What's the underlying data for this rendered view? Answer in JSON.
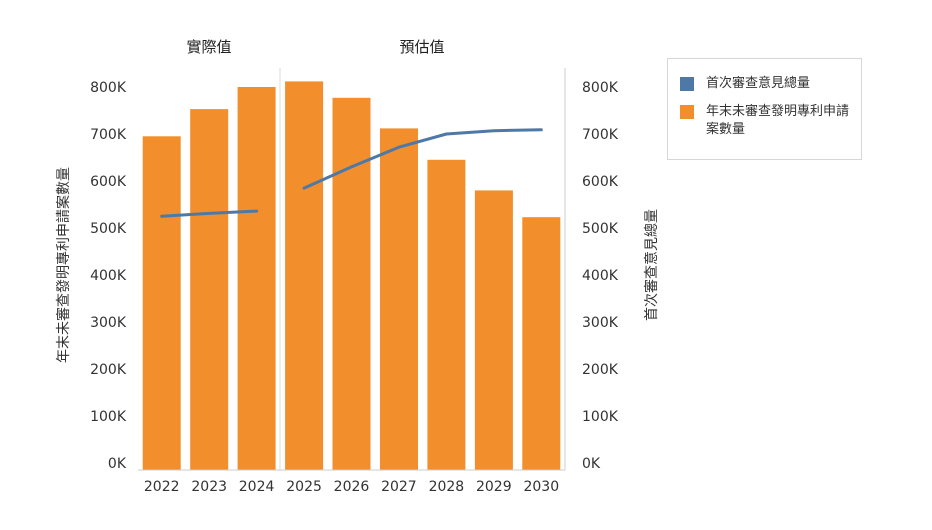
{
  "chart_data": {
    "type": "bar",
    "categories": [
      "2022",
      "2023",
      "2024",
      "2025",
      "2026",
      "2027",
      "2028",
      "2029",
      "2030"
    ],
    "section_labels": [
      "實際值",
      "預估值"
    ],
    "series": [
      {
        "name": "年末未審查發明專利申請案數量",
        "kind": "bar",
        "axis": "left",
        "color": "#f28e2b",
        "values": [
          695000,
          753000,
          800000,
          812000,
          777000,
          712000,
          645000,
          580000,
          523000
        ]
      },
      {
        "name": "首次審查意見總量",
        "kind": "line",
        "axis": "right",
        "color": "#4e79a7",
        "values": [
          525000,
          531000,
          536000,
          585000,
          630000,
          672000,
          700000,
          707000,
          709000
        ]
      }
    ],
    "left_axis_label": "年末未審查發明專利申請案數量",
    "right_axis_label": "首次審查意見總量",
    "ylim": [
      0,
      800000
    ],
    "yticks": [
      "0K",
      "100K",
      "200K",
      "300K",
      "400K",
      "500K",
      "600K",
      "700K",
      "800K"
    ],
    "legend_position": "right",
    "grid": false
  }
}
